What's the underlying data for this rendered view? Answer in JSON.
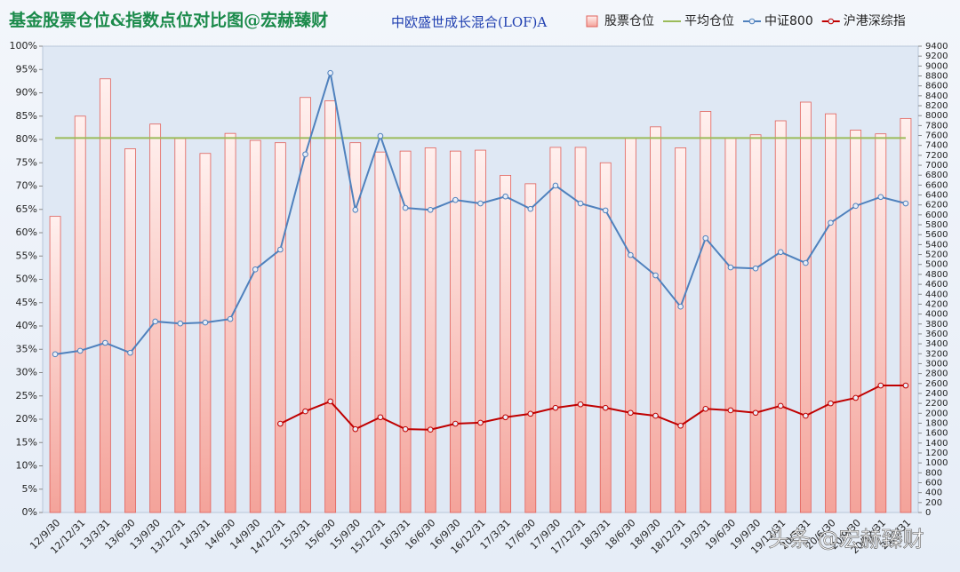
{
  "chart_data": {
    "type": "bar",
    "title": "基金股票仓位&指数点位对比图@宏赫臻财",
    "subtitle": "中欧盛世成长混合(LOF)A",
    "watermark": "头条 @宏赫臻财",
    "categories": [
      "12/9/30",
      "12/12/31",
      "13/3/31",
      "13/6/30",
      "13/9/30",
      "13/12/31",
      "14/3/31",
      "14/6/30",
      "14/9/30",
      "14/12/31",
      "15/3/31",
      "15/6/30",
      "15/9/30",
      "15/12/31",
      "16/3/31",
      "16/6/30",
      "16/9/30",
      "16/12/31",
      "17/3/31",
      "17/6/30",
      "17/9/30",
      "17/12/31",
      "18/3/31",
      "18/6/30",
      "18/9/30",
      "18/12/31",
      "19/3/31",
      "19/6/30",
      "19/9/30",
      "19/12/31",
      "20/3/31",
      "20/6/30",
      "20/9/30",
      "20/12/31",
      "21/3/31"
    ],
    "series": [
      {
        "name": "股票仓位",
        "type": "bar",
        "color": "#f4a39a",
        "values": [
          63.5,
          85,
          93,
          78,
          83.3,
          80.2,
          77,
          81.3,
          79.8,
          79.3,
          89,
          88.3,
          79.3,
          77.3,
          77.5,
          78.2,
          77.5,
          77.7,
          72.3,
          70.5,
          78.3,
          78.3,
          75,
          80.3,
          82.7,
          78.2,
          86,
          80.3,
          81,
          84,
          88,
          85.5,
          82,
          81.2,
          84.5
        ]
      },
      {
        "name": "平均仓位",
        "type": "line",
        "color": "#9bbb59",
        "values": [
          80.3,
          80.3,
          80.3,
          80.3,
          80.3,
          80.3,
          80.3,
          80.3,
          80.3,
          80.3,
          80.3,
          80.3,
          80.3,
          80.3,
          80.3,
          80.3,
          80.3,
          80.3,
          80.3,
          80.3,
          80.3,
          80.3,
          80.3,
          80.3,
          80.3,
          80.3,
          80.3,
          80.3,
          80.3,
          80.3,
          80.3,
          80.3,
          80.3,
          80.3,
          80.3
        ]
      },
      {
        "name": "中证800",
        "type": "line",
        "axis": "y2",
        "markers": true,
        "color": "#4f81bd",
        "values": [
          3190,
          3260,
          3420,
          3220,
          3850,
          3810,
          3830,
          3900,
          4900,
          5300,
          7220,
          8860,
          6100,
          7590,
          6140,
          6100,
          6300,
          6230,
          6370,
          6120,
          6590,
          6230,
          6090,
          5190,
          4780,
          4150,
          5530,
          4940,
          4920,
          5250,
          5030,
          5840,
          6180,
          6360,
          6230
        ]
      },
      {
        "name": "沪港深综指",
        "type": "line",
        "axis": "y2",
        "markers": true,
        "color": "#c00000",
        "values": [
          null,
          null,
          null,
          null,
          null,
          null,
          null,
          null,
          null,
          1790,
          2040,
          2240,
          1680,
          1920,
          1680,
          1670,
          1790,
          1810,
          1920,
          1990,
          2110,
          2180,
          2110,
          2010,
          1950,
          1750,
          2090,
          2060,
          2010,
          2150,
          1950,
          2200,
          2310,
          2560,
          2560
        ]
      }
    ],
    "ylim": [
      0,
      100
    ],
    "yticks": [
      {
        "value": 0,
        "label": "0%"
      },
      {
        "value": 5,
        "label": "5%"
      },
      {
        "value": 10,
        "label": "10%"
      },
      {
        "value": 15,
        "label": "15%"
      },
      {
        "value": 20,
        "label": "20%"
      },
      {
        "value": 25,
        "label": "25%"
      },
      {
        "value": 30,
        "label": "30%"
      },
      {
        "value": 35,
        "label": "35%"
      },
      {
        "value": 40,
        "label": "40%"
      },
      {
        "value": 45,
        "label": "45%"
      },
      {
        "value": 50,
        "label": "50%"
      },
      {
        "value": 55,
        "label": "55%"
      },
      {
        "value": 60,
        "label": "60%"
      },
      {
        "value": 65,
        "label": "65%"
      },
      {
        "value": 70,
        "label": "70%"
      },
      {
        "value": 75,
        "label": "75%"
      },
      {
        "value": 80,
        "label": "80%"
      },
      {
        "value": 85,
        "label": "85%"
      },
      {
        "value": 90,
        "label": "90%"
      },
      {
        "value": 95,
        "label": "95%"
      },
      {
        "value": 100,
        "label": "100%"
      }
    ],
    "y2lim": [
      0,
      9400
    ],
    "y2ticks": [
      0,
      200,
      400,
      600,
      800,
      1000,
      1200,
      1400,
      1600,
      1800,
      2000,
      2200,
      2400,
      2600,
      2800,
      3000,
      3200,
      3400,
      3600,
      3800,
      4000,
      4200,
      4400,
      4600,
      4800,
      5000,
      5200,
      5400,
      5600,
      5800,
      6000,
      6200,
      6400,
      6600,
      6800,
      7000,
      7200,
      7400,
      7600,
      7800,
      8000,
      8200,
      8400,
      8600,
      8800,
      9000,
      9200,
      9400
    ],
    "legend": "top-right"
  }
}
